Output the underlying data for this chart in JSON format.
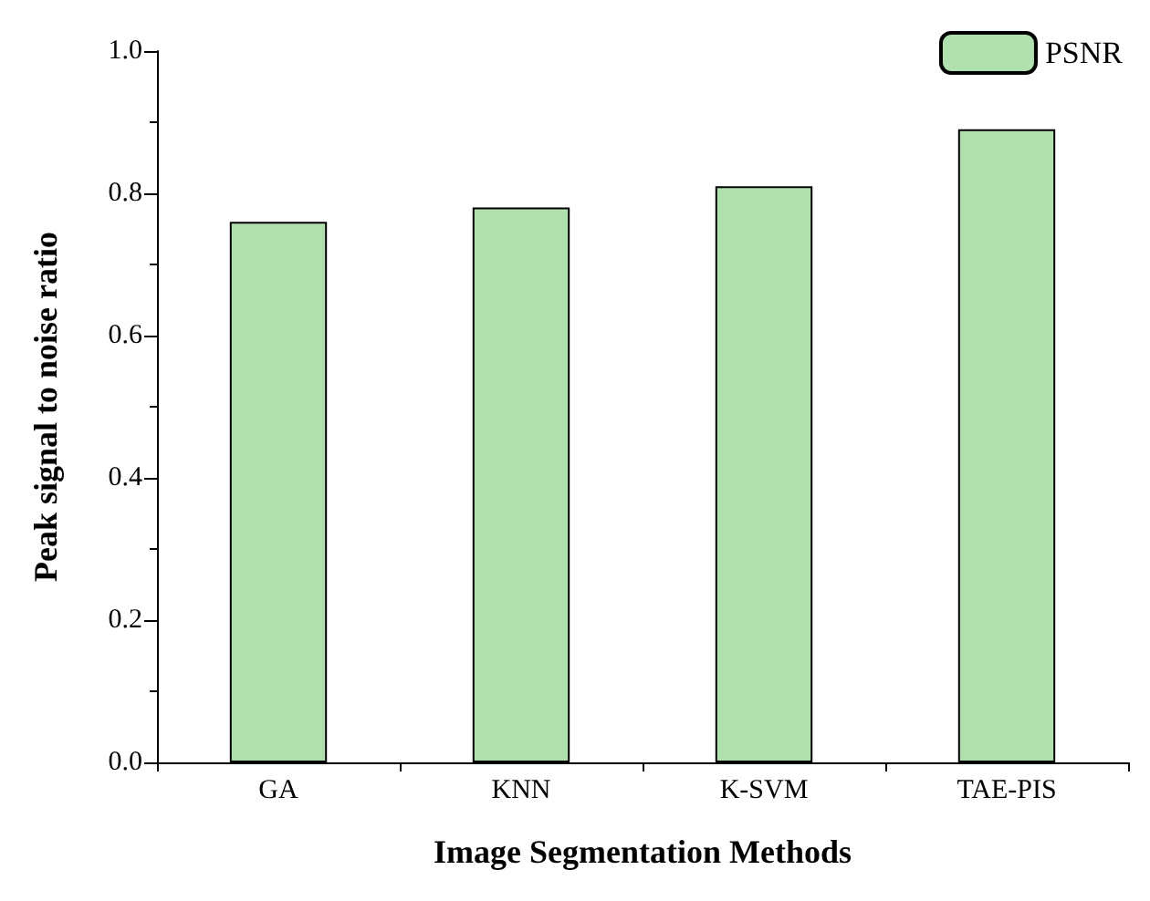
{
  "chart_data": {
    "type": "bar",
    "xlabel": "Image Segmentation Methods",
    "ylabel": "Peak signal to noise ratio",
    "categories": [
      "GA",
      "KNN",
      "K-SVM",
      "TAE-PIS"
    ],
    "series": [
      {
        "name": "PSNR",
        "color": "#b0e0ad",
        "values": [
          0.76,
          0.78,
          0.81,
          0.89
        ]
      }
    ],
    "ylim": [
      0,
      1
    ],
    "yticks": [
      {
        "value": 0,
        "label": "0.0"
      },
      {
        "value": 0.2,
        "label": "0.2"
      },
      {
        "value": 0.4,
        "label": "0.4"
      },
      {
        "value": 0.6,
        "label": "0.6"
      },
      {
        "value": 0.8,
        "label": "0.8"
      },
      {
        "value": 1,
        "label": "1.0"
      }
    ],
    "grid": false,
    "legend": "top right"
  }
}
